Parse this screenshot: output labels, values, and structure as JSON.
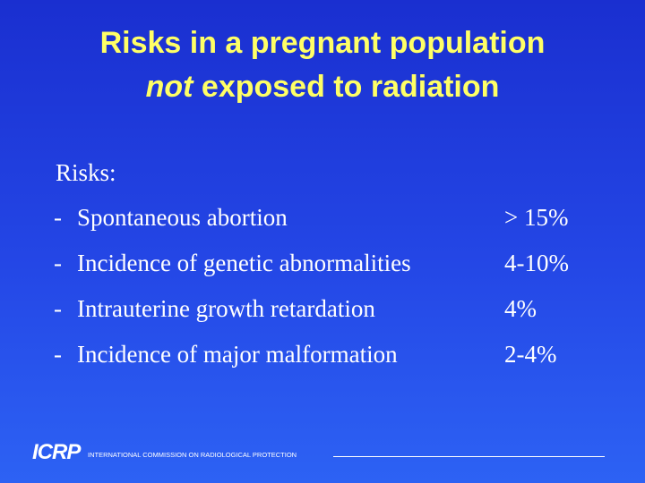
{
  "title": {
    "line1": "Risks in a pregnant population",
    "emphasis": "not",
    "line2": "exposed to radiation"
  },
  "section_label": "Risks:",
  "items": [
    {
      "bullet": "-",
      "label": "Spontaneous abortion",
      "value": "> 15%"
    },
    {
      "bullet": "-",
      "label": "Incidence of genetic abnormalities",
      "value": "4-10%"
    },
    {
      "bullet": "-",
      "label": "Intrauterine growth retardation",
      "value": "4%"
    },
    {
      "bullet": "-",
      "label": "Incidence of major malformation",
      "value": "2-4%"
    }
  ],
  "footer": {
    "logo": "ICRP",
    "organization": "INTERNATIONAL COMMISSION ON RADIOLOGICAL PROTECTION"
  }
}
